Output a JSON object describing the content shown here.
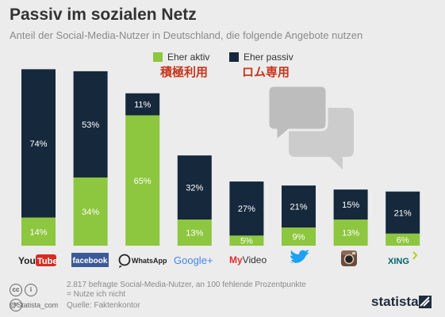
{
  "title": "Passiv im sozialen Netz",
  "subtitle": "Anteil der Social-Media-Nutzer in Deutschland, die folgende Angebote nutzen",
  "legend": {
    "active": "Eher aktiv",
    "passive": "Eher passiv",
    "active_jp": "積極利用",
    "passive_jp": "ロム専用"
  },
  "colors": {
    "active": "#8dc63f",
    "passive": "#16283c",
    "accent_jp": "#c8361e",
    "background": "#ececec"
  },
  "chart_data": {
    "type": "bar",
    "stacked": true,
    "categories": [
      "YouTube",
      "facebook",
      "WhatsApp",
      "Google+",
      "MyVideo",
      "Twitter",
      "Instagram",
      "XING"
    ],
    "series": [
      {
        "name": "Eher aktiv",
        "values": [
          14,
          34,
          65,
          13,
          5,
          9,
          13,
          6
        ]
      },
      {
        "name": "Eher passiv",
        "values": [
          74,
          53,
          11,
          32,
          27,
          21,
          15,
          21
        ]
      }
    ],
    "value_labels_active": [
      "14%",
      "34%",
      "65%",
      "13%",
      "5%",
      "9%",
      "13%",
      "6%"
    ],
    "value_labels_passive": [
      "74%",
      "53%",
      "11%",
      "32%",
      "27%",
      "21%",
      "15%",
      "21%"
    ],
    "ylim": [
      0,
      100
    ],
    "grid": false,
    "legend_position": "top-center"
  },
  "logos": {
    "youtube_you": "You",
    "youtube_tube": "Tube",
    "facebook": "facebook",
    "whatsapp": "WhatsApp",
    "googleplus": "Google+",
    "myvideo_my": "My",
    "myvideo_video": "Video",
    "xing": "XING"
  },
  "footer": {
    "note1": "2.817 befragte Social-Media-Nutzer, an 100 fehlende Prozentpunkte",
    "note2": "= Nutze ich nicht",
    "source": "Quelle: Faktenkontor",
    "credit": "@Statista_com",
    "cc1": "cc",
    "cc2": "i",
    "cc3": "=",
    "brand": "statista"
  }
}
